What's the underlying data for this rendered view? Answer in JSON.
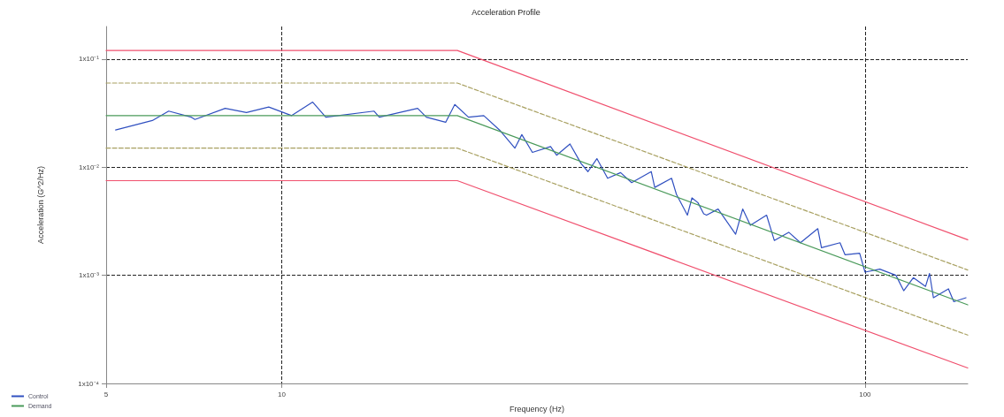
{
  "chart_data": {
    "type": "line",
    "title": "Acceleration Profile",
    "xlabel": "Frequency (Hz)",
    "ylabel": "Acceleration (G^2/Hz)",
    "log": "xy",
    "grid": true,
    "legend": "bottom left",
    "marker": "none",
    "xlim": [
      5,
      150
    ],
    "xticks": [
      5,
      10,
      100
    ],
    "ylim": [
      0.0001,
      0.2
    ],
    "yticks": [
      {
        "value": 0.0001,
        "label": "1x10⁻⁴"
      },
      {
        "value": 0.001,
        "label": "1x10⁻³"
      },
      {
        "value": 0.01,
        "label": "1x10⁻²"
      },
      {
        "value": 0.1,
        "label": "1x10⁻¹"
      }
    ],
    "series": [
      {
        "name": "Control",
        "color": "#3050c0",
        "x": [
          5.19,
          6.0,
          6.4,
          7.0,
          7.1,
          8.0,
          8.7,
          9.5,
          10.4,
          11.3,
          11.9,
          14.4,
          14.7,
          17.1,
          17.7,
          19.1,
          19.8,
          20.9,
          22.2,
          23.7,
          25.1,
          25.8,
          26.9,
          28.9,
          29.6,
          31.2,
          32.6,
          33.5,
          34.7,
          36.2,
          38.1,
          39.8,
          43,
          43.6,
          46.6,
          47.5,
          49.6,
          50.5,
          51.7,
          52.9,
          53.5,
          56,
          60,
          61.7,
          63.6,
          67.8,
          69.9,
          74,
          77.5,
          83,
          84.2,
          90.6,
          92.4,
          97.9,
          100,
          106,
          113,
          116.5,
          121,
          127,
          129,
          131,
          139,
          142,
          149
        ],
        "values": [
          0.0221,
          0.027,
          0.033,
          0.029,
          0.0276,
          0.035,
          0.032,
          0.036,
          0.03,
          0.04,
          0.029,
          0.033,
          0.029,
          0.035,
          0.029,
          0.026,
          0.038,
          0.029,
          0.03,
          0.0217,
          0.015,
          0.02,
          0.0137,
          0.0155,
          0.0129,
          0.0164,
          0.0108,
          0.0091,
          0.012,
          0.0079,
          0.0089,
          0.0072,
          0.0091,
          0.0065,
          0.0079,
          0.0056,
          0.0036,
          0.0052,
          0.0047,
          0.0037,
          0.0036,
          0.0041,
          0.0024,
          0.0041,
          0.0029,
          0.0036,
          0.0021,
          0.0025,
          0.002,
          0.0027,
          0.0018,
          0.002,
          0.00155,
          0.0016,
          0.00107,
          0.00114,
          0.001,
          0.00072,
          0.00095,
          0.00079,
          0.00104,
          0.00062,
          0.00075,
          0.00057,
          0.00062
        ]
      },
      {
        "name": "Demand",
        "color": "#4a9a5a",
        "x": [
          5,
          20,
          150
        ],
        "values": [
          0.03,
          0.03,
          0.000533
        ]
      },
      {
        "color": "#f0506e",
        "x": [
          5,
          20,
          150
        ],
        "values": [
          0.12,
          0.12,
          0.00213
        ]
      },
      {
        "color": "#f0506e",
        "x": [
          5,
          20,
          150
        ],
        "values": [
          0.0075,
          0.0075,
          0.000139
        ]
      },
      {
        "color": "#a8a060",
        "line_style": "dashed",
        "x": [
          5,
          20,
          150
        ],
        "values": [
          0.06,
          0.06,
          0.00112
        ]
      },
      {
        "color": "#a8a060",
        "line_style": "dashed",
        "x": [
          5,
          20,
          150
        ],
        "values": [
          0.015,
          0.015,
          0.00028
        ]
      }
    ]
  }
}
